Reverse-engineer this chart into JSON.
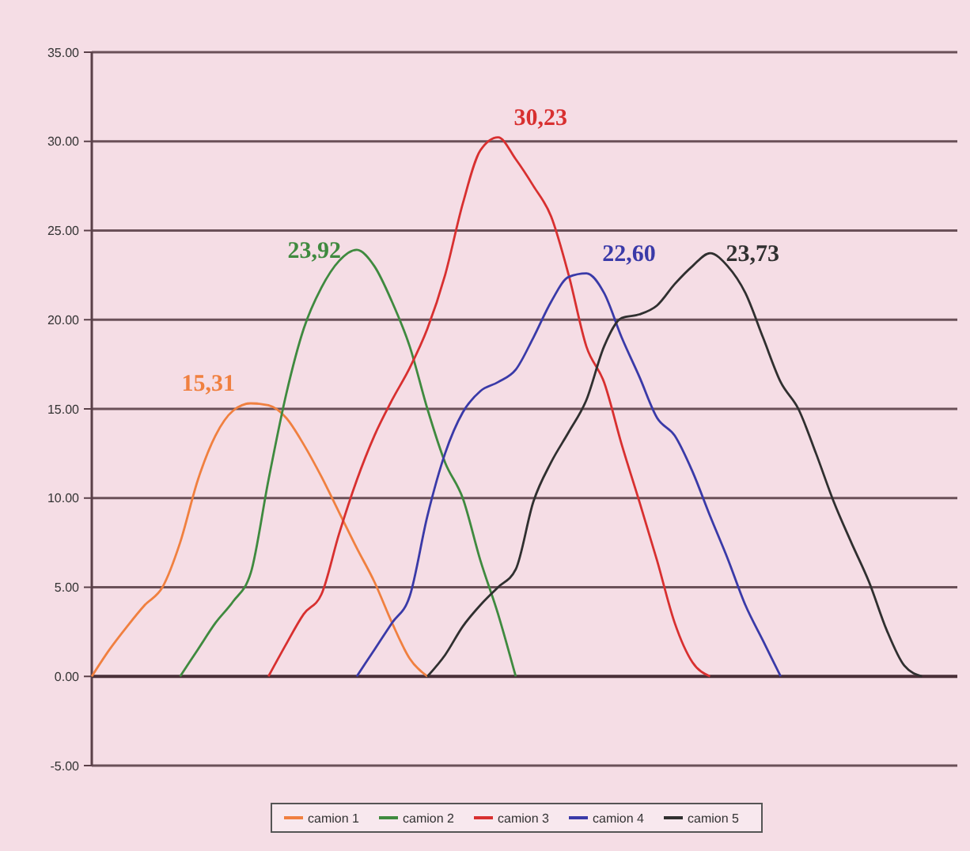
{
  "chart_data": {
    "type": "line",
    "categories": [
      null,
      null,
      null,
      null,
      null,
      null,
      null,
      null,
      null,
      null,
      null,
      null,
      null,
      null,
      null,
      null,
      null,
      null,
      null,
      null,
      null,
      null,
      null,
      null,
      null,
      null,
      null,
      null,
      null,
      null,
      null,
      null,
      null,
      null,
      null,
      null,
      null,
      null,
      null,
      null,
      null,
      null,
      null,
      null,
      null,
      null,
      null,
      null,
      null,
      null
    ],
    "ylim": [
      -5,
      35
    ],
    "yticks": [
      {
        "value": -5,
        "label": "-5.00"
      },
      {
        "value": 0,
        "label": "0.00"
      },
      {
        "value": 5,
        "label": "5.00"
      },
      {
        "value": 10,
        "label": "10.00"
      },
      {
        "value": 15,
        "label": "15.00"
      },
      {
        "value": 20,
        "label": "20.00"
      },
      {
        "value": 25,
        "label": "25.00"
      },
      {
        "value": 30,
        "label": "30.00"
      },
      {
        "value": 35,
        "label": "35.00"
      }
    ],
    "grid": "y",
    "legend": "bottom",
    "marker": "none",
    "line_style": "solid",
    "series": [
      {
        "name": "camion 1",
        "color": "#f08040",
        "values": [
          0,
          1.5,
          2.8,
          4,
          5,
          7.5,
          11,
          13.5,
          14.9,
          15.31,
          15.2,
          14.5,
          13,
          11.2,
          9.2,
          7.2,
          5.3,
          3,
          1,
          0,
          null,
          null,
          null,
          null,
          null,
          null,
          null,
          null,
          null,
          null,
          null,
          null,
          null,
          null,
          null,
          null,
          null,
          null,
          null,
          null,
          null,
          null,
          null,
          null,
          null,
          null,
          null,
          null,
          null,
          null
        ],
        "value_labels": [
          null,
          null,
          null,
          null,
          null,
          null,
          null,
          null,
          null,
          "15,31",
          null,
          null,
          null,
          null,
          null,
          null,
          null,
          null,
          null,
          null,
          null,
          null,
          null,
          null,
          null,
          null,
          null,
          null,
          null,
          null,
          null,
          null,
          null,
          null,
          null,
          null,
          null,
          null,
          null,
          null,
          null,
          null,
          null,
          null,
          null,
          null,
          null,
          null,
          null,
          null
        ]
      },
      {
        "name": "camion 2",
        "color": "#3f8a3f",
        "values": [
          null,
          null,
          null,
          null,
          null,
          0,
          1.5,
          3,
          4.2,
          5.8,
          11,
          15.8,
          19.5,
          21.8,
          23.3,
          23.92,
          23,
          21,
          18.5,
          15,
          12,
          10,
          6.5,
          3.5,
          0,
          null,
          null,
          null,
          null,
          null,
          null,
          null,
          null,
          null,
          null,
          null,
          null,
          null,
          null,
          null,
          null,
          null,
          null,
          null,
          null,
          null,
          null,
          null,
          null,
          null
        ],
        "value_labels": [
          null,
          null,
          null,
          null,
          null,
          null,
          null,
          null,
          null,
          null,
          null,
          null,
          null,
          null,
          null,
          "23,92",
          null,
          null,
          null,
          null,
          null,
          null,
          null,
          null,
          null,
          null,
          null,
          null,
          null,
          null,
          null,
          null,
          null,
          null,
          null,
          null,
          null,
          null,
          null,
          null,
          null,
          null,
          null,
          null,
          null,
          null,
          null,
          null,
          null,
          null
        ]
      },
      {
        "name": "camion 3",
        "color": "#d83030",
        "values": [
          null,
          null,
          null,
          null,
          null,
          null,
          null,
          null,
          null,
          null,
          0,
          1.8,
          3.5,
          4.6,
          8,
          11,
          13.5,
          15.5,
          17.3,
          19.5,
          22.5,
          26.5,
          29.5,
          30.23,
          29,
          27.5,
          25.8,
          22.5,
          18.5,
          16.5,
          13,
          9.8,
          6.5,
          3,
          0.8,
          0,
          null,
          null,
          null,
          null,
          null,
          null,
          null,
          null,
          null,
          null,
          null,
          null,
          null,
          null
        ],
        "value_labels": [
          null,
          null,
          null,
          null,
          null,
          null,
          null,
          null,
          null,
          null,
          null,
          null,
          null,
          null,
          null,
          null,
          null,
          null,
          null,
          null,
          null,
          null,
          null,
          "30,23",
          null,
          null,
          null,
          null,
          null,
          null,
          null,
          null,
          null,
          null,
          null,
          null,
          null,
          null,
          null,
          null,
          null,
          null,
          null,
          null,
          null,
          null,
          null,
          null,
          null,
          null
        ]
      },
      {
        "name": "camion 4",
        "color": "#3a3aa8",
        "values": [
          null,
          null,
          null,
          null,
          null,
          null,
          null,
          null,
          null,
          null,
          null,
          null,
          null,
          null,
          null,
          0,
          1.5,
          3,
          4.5,
          9,
          12.5,
          14.8,
          16,
          16.5,
          17.2,
          19,
          21,
          22.4,
          22.6,
          21.5,
          19,
          16.8,
          14.5,
          13.5,
          11.5,
          9,
          6.6,
          4,
          2,
          0,
          null,
          null,
          null,
          null,
          null,
          null,
          null,
          null,
          null,
          null
        ],
        "value_labels": [
          null,
          null,
          null,
          null,
          null,
          null,
          null,
          null,
          null,
          null,
          null,
          null,
          null,
          null,
          null,
          null,
          null,
          null,
          null,
          null,
          null,
          null,
          null,
          null,
          null,
          null,
          null,
          null,
          "22,60",
          null,
          null,
          null,
          null,
          null,
          null,
          null,
          null,
          null,
          null,
          null,
          null,
          null,
          null,
          null,
          null,
          null,
          null,
          null,
          null,
          null
        ]
      },
      {
        "name": "camion 5",
        "color": "#303030",
        "values": [
          null,
          null,
          null,
          null,
          null,
          null,
          null,
          null,
          null,
          null,
          null,
          null,
          null,
          null,
          null,
          null,
          null,
          null,
          null,
          0,
          1.2,
          2.8,
          4,
          5,
          6,
          9.8,
          12,
          13.7,
          15.5,
          18.5,
          20.1,
          20.3,
          20.8,
          22,
          23,
          23.73,
          23,
          21.5,
          19,
          16.5,
          15,
          12.5,
          9.8,
          7.5,
          5.3,
          2.6,
          0.6,
          0,
          null,
          null
        ],
        "value_labels": [
          null,
          null,
          null,
          null,
          null,
          null,
          null,
          null,
          null,
          null,
          null,
          null,
          null,
          null,
          null,
          null,
          null,
          null,
          null,
          null,
          null,
          null,
          null,
          null,
          null,
          null,
          null,
          null,
          null,
          null,
          null,
          null,
          null,
          null,
          null,
          "23,73",
          null,
          null,
          null,
          null,
          null,
          null,
          null,
          null,
          null,
          null,
          null,
          null,
          null,
          null
        ]
      }
    ]
  }
}
